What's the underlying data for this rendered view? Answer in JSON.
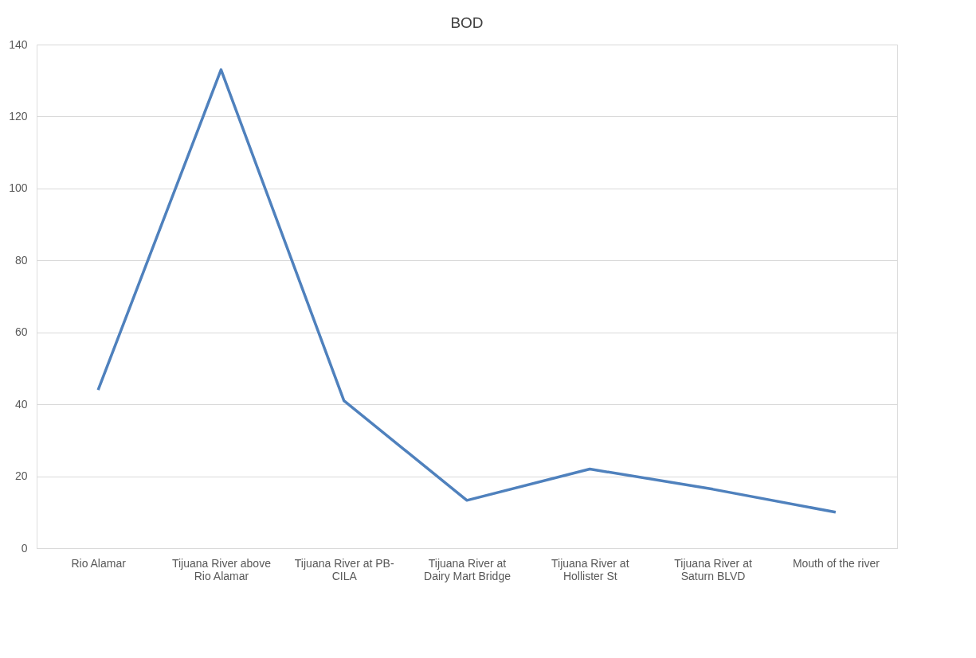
{
  "chart_data": {
    "type": "line",
    "title": "BOD",
    "categories": [
      "Rio Alamar",
      "Tijuana River above Rio Alamar",
      "Tijuana River at PB-CILA",
      "Tijuana River at Dairy Mart Bridge",
      "Tijuana River at Hollister St",
      "Tijuana River at Saturn BLVD",
      "Mouth of the river"
    ],
    "series": [
      {
        "color": "#4f81bd",
        "values": [
          44,
          133,
          41,
          13.3,
          22,
          16.4,
          10
        ]
      }
    ],
    "ylim": [
      0,
      140
    ],
    "yticks": [
      0,
      20,
      40,
      60,
      80,
      100,
      120,
      140
    ],
    "grid": "y",
    "marker": "none",
    "line_style": "solid"
  }
}
